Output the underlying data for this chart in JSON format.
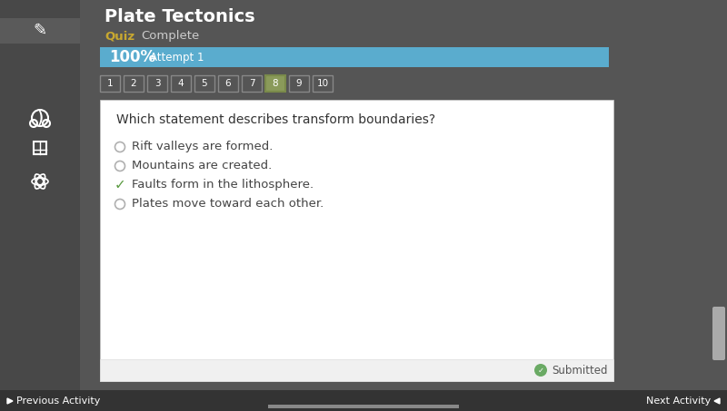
{
  "title": "Plate Tectonics",
  "subtitle_left": "Quiz",
  "subtitle_right": "Complete",
  "progress_text": "100%",
  "attempt_text": "Attempt 1",
  "progress_color": "#5aacce",
  "bg_color": "#555555",
  "sidebar_color": "#484848",
  "white_panel_color": "#ffffff",
  "question": "Which statement describes transform boundaries?",
  "options": [
    "Rift valleys are formed.",
    "Mountains are created.",
    "Faults form in the lithosphere.",
    "Plates move toward each other."
  ],
  "correct_index": 2,
  "tab_numbers": [
    "1",
    "2",
    "3",
    "4",
    "5",
    "6",
    "7",
    "8",
    "9",
    "10"
  ],
  "active_tab": 7,
  "submitted_color": "#6aaa64",
  "nav_left": "Previous Activity",
  "nav_right": "Next Activity",
  "quiz_color": "#c8a830",
  "complete_color": "#cccccc",
  "tab_active_color": "#8a9a5a",
  "tab_active_border": "#7a8a4a",
  "tab_inactive_border": "#888888",
  "title_color": "#ffffff",
  "nav_bar_color": "#333333",
  "bottom_footer_color": "#f0f0f0",
  "scrollbar_color": "#aaaaaa",
  "handle_color": "#aaaaaa"
}
